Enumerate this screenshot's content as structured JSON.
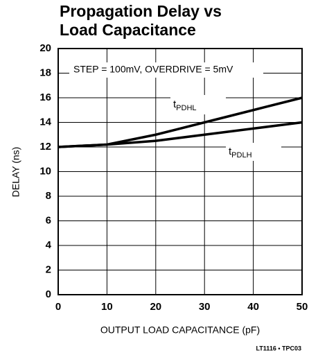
{
  "chart_data": {
    "type": "line",
    "title": [
      "Propagation Delay vs",
      "Load Capacitance"
    ],
    "annotation": "STEP = 100mV, OVERDRIVE = 5mV",
    "x_label": "OUTPUT LOAD CAPACITANCE (pF)",
    "y_label": "DELAY (ns)",
    "footnote": "LT1116 • TPC03",
    "x": [
      0,
      10,
      20,
      30,
      40,
      50
    ],
    "series": [
      {
        "name": "tPDHL",
        "color": "#000000",
        "values": [
          12,
          12.2,
          13,
          14,
          15,
          16
        ]
      },
      {
        "name": "tPDLH",
        "color": "#000000",
        "values": [
          12,
          12.2,
          12.5,
          13,
          13.5,
          14
        ]
      }
    ],
    "xlim": [
      0,
      50
    ],
    "xticks": [
      0,
      10,
      20,
      30,
      40,
      50
    ],
    "ylim": [
      0,
      20
    ],
    "yticks": [
      0,
      2,
      4,
      6,
      8,
      10,
      12,
      14,
      16,
      18,
      20
    ],
    "grid": true
  }
}
